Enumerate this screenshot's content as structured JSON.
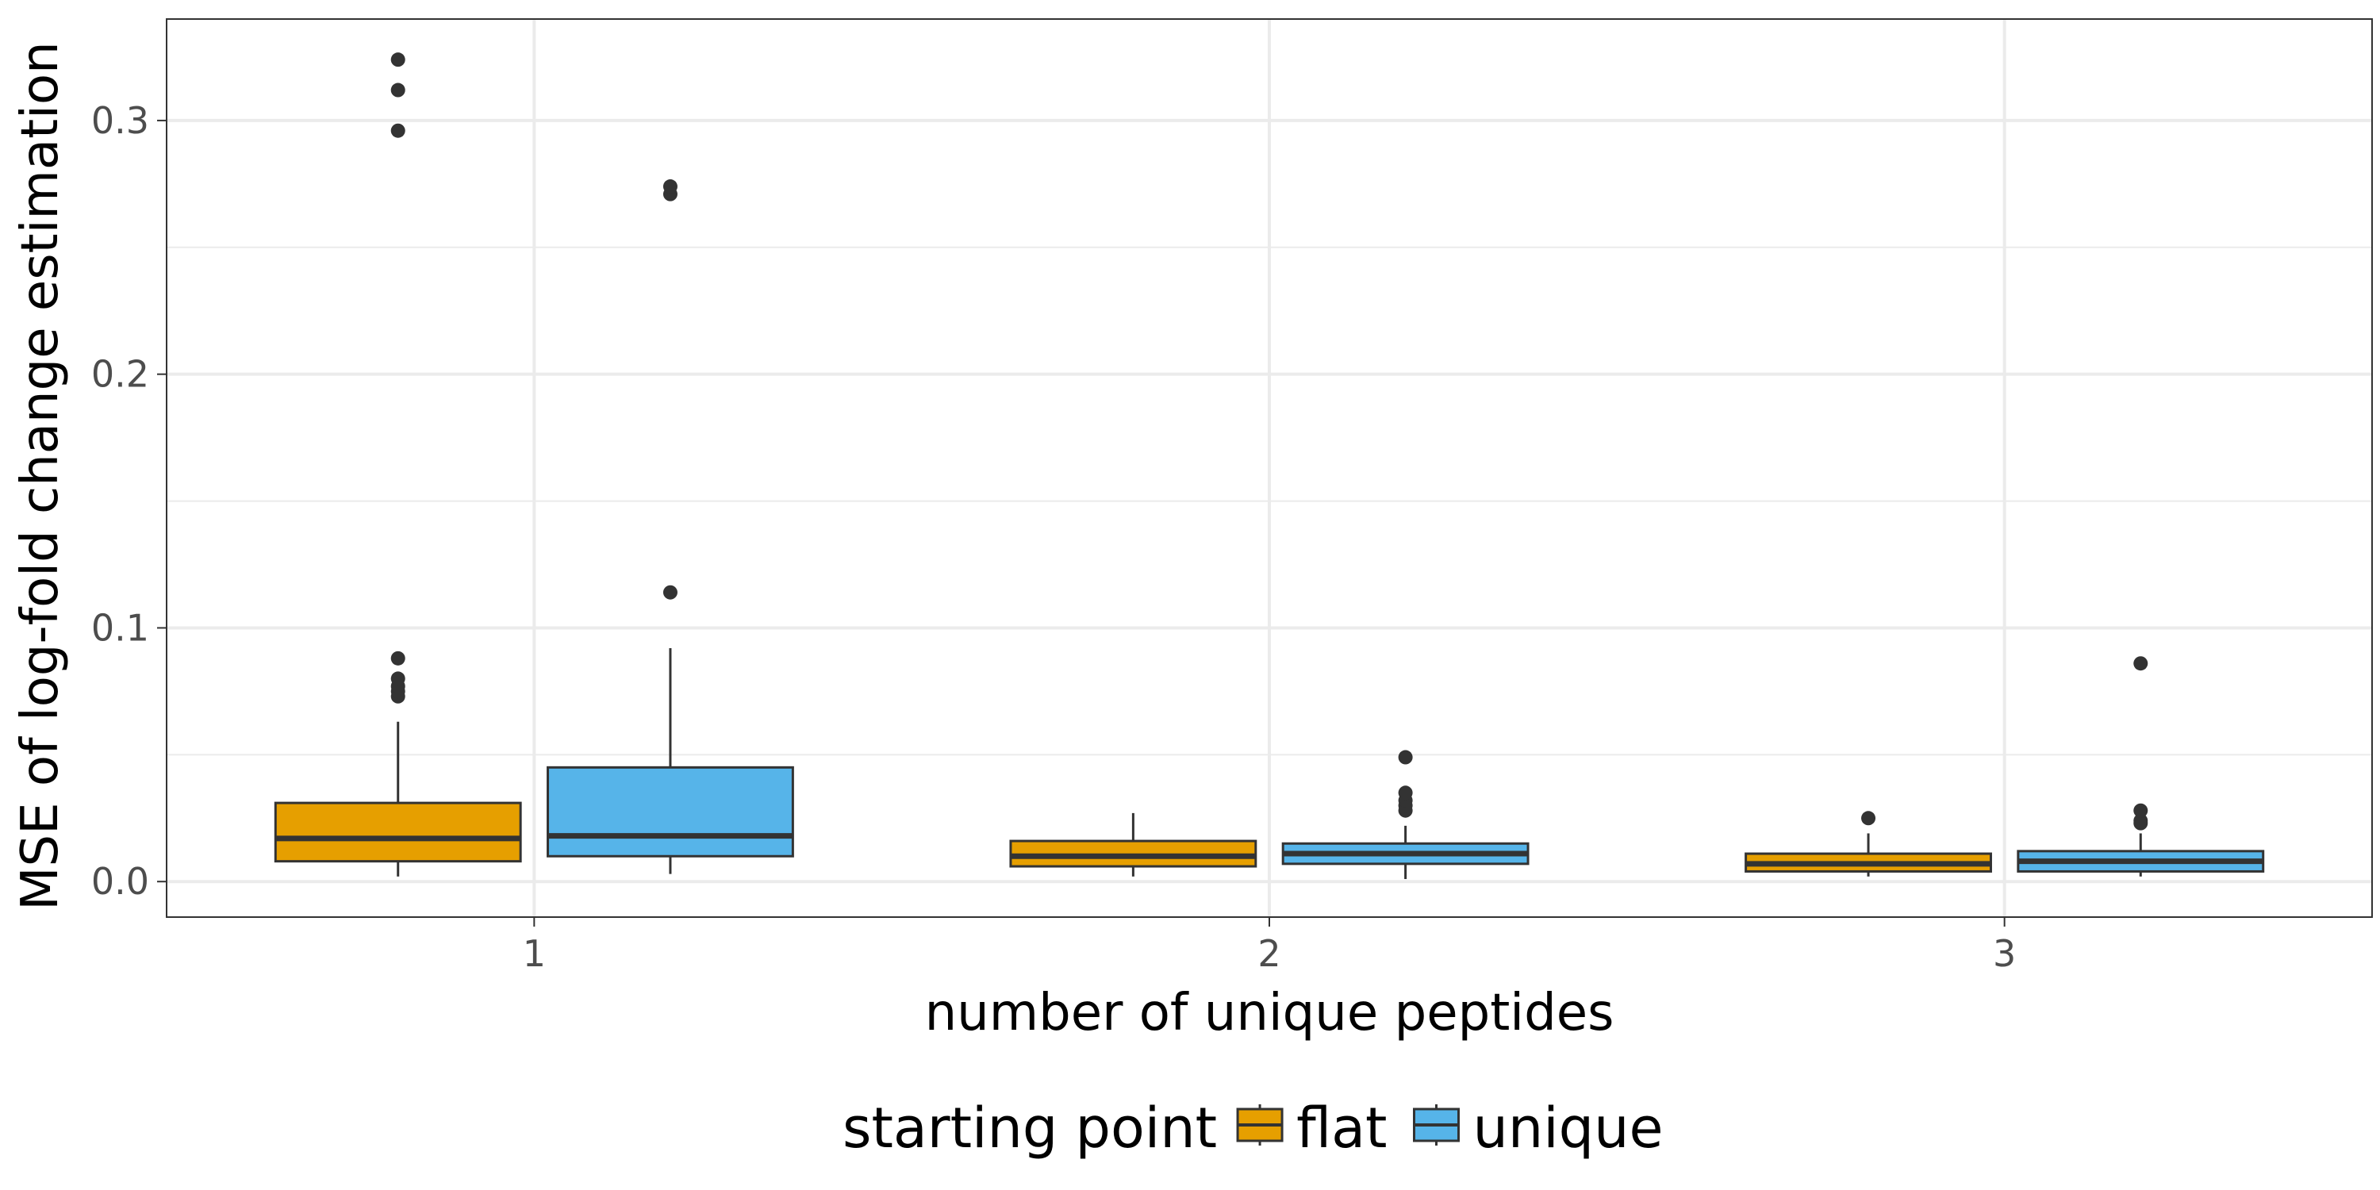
{
  "chart_data": {
    "type": "boxplot",
    "xlabel": "number of unique peptides",
    "ylabel": "MSE of log-fold change estimation",
    "categories": [
      "1",
      "2",
      "3"
    ],
    "ylim": [
      -0.014,
      0.34
    ],
    "yticks": [
      0.0,
      0.1,
      0.2,
      0.3
    ],
    "ytick_labels": [
      "0.0",
      "0.1",
      "0.2",
      "0.3"
    ],
    "grid": true,
    "legend": {
      "title": "starting point",
      "placement": "bottom",
      "entries": [
        "flat",
        "unique"
      ]
    },
    "series": [
      {
        "name": "flat",
        "color": "#E69F00",
        "boxes": [
          {
            "category": "1",
            "whisker_low": 0.002,
            "q1": 0.008,
            "median": 0.017,
            "q3": 0.031,
            "whisker_high": 0.063,
            "outliers": [
              0.073,
              0.075,
              0.077,
              0.08,
              0.088,
              0.296,
              0.312,
              0.324
            ]
          },
          {
            "category": "2",
            "whisker_low": 0.002,
            "q1": 0.006,
            "median": 0.01,
            "q3": 0.016,
            "whisker_high": 0.027,
            "outliers": []
          },
          {
            "category": "3",
            "whisker_low": 0.002,
            "q1": 0.004,
            "median": 0.007,
            "q3": 0.011,
            "whisker_high": 0.019,
            "outliers": [
              0.025
            ]
          }
        ]
      },
      {
        "name": "unique",
        "color": "#56B4E9",
        "boxes": [
          {
            "category": "1",
            "whisker_low": 0.003,
            "q1": 0.01,
            "median": 0.018,
            "q3": 0.045,
            "whisker_high": 0.092,
            "outliers": [
              0.114,
              0.271,
              0.274
            ]
          },
          {
            "category": "2",
            "whisker_low": 0.001,
            "q1": 0.007,
            "median": 0.011,
            "q3": 0.015,
            "whisker_high": 0.022,
            "outliers": [
              0.028,
              0.03,
              0.032,
              0.035,
              0.049
            ]
          },
          {
            "category": "3",
            "whisker_low": 0.002,
            "q1": 0.004,
            "median": 0.008,
            "q3": 0.012,
            "whisker_high": 0.019,
            "outliers": [
              0.023,
              0.024,
              0.028,
              0.086
            ]
          }
        ]
      }
    ]
  }
}
